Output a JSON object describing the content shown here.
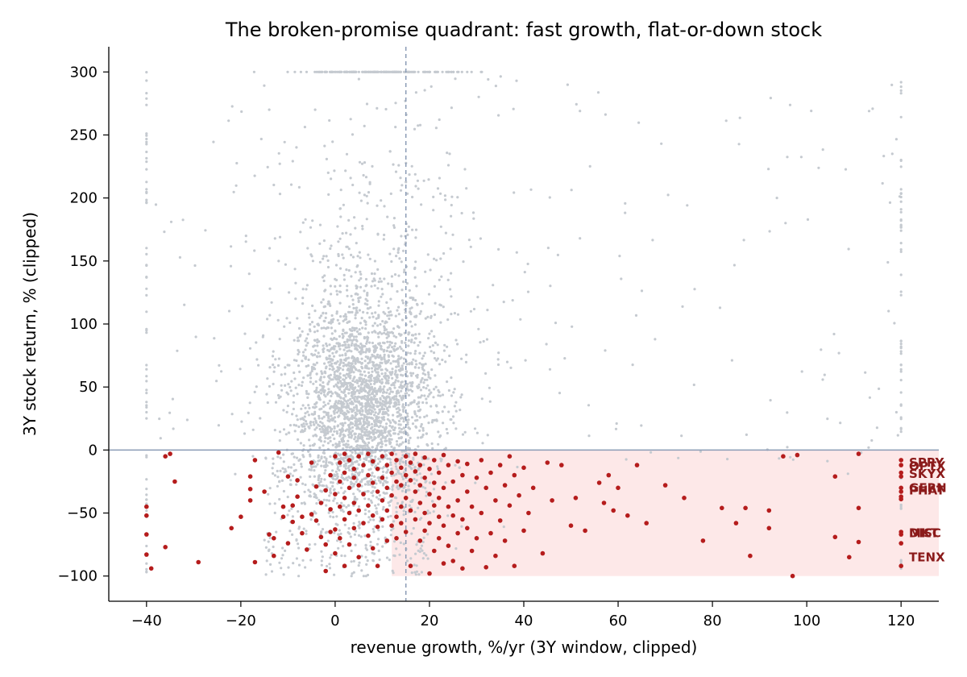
{
  "chart_data": {
    "type": "scatter",
    "title": "The broken-promise quadrant: fast growth, flat-or-down stock",
    "xlabel": "revenue growth, %/yr (3Y window, clipped)",
    "ylabel": "3Y stock return, % (clipped)",
    "xlim": [
      -48,
      128
    ],
    "ylim": [
      -120,
      320
    ],
    "x_ticks": [
      -40,
      -20,
      0,
      20,
      40,
      60,
      80,
      100,
      120
    ],
    "y_ticks": [
      -100,
      -50,
      0,
      50,
      100,
      150,
      200,
      250,
      300
    ],
    "grid": false,
    "legend": "none",
    "reference_lines": {
      "vertical_x": 15,
      "horizontal_y": 0
    },
    "shaded_region": {
      "x": [
        12,
        128
      ],
      "y": [
        -100,
        0
      ]
    },
    "colors": {
      "background_points": "#c5cad0",
      "highlight_points": "#b51c1c",
      "shaded_region": "#fde8e8",
      "reference_line": "#8a9bb5",
      "callout_text": "#8b1a1a"
    },
    "series": [
      {
        "points": [
          [
            -40,
            -45
          ],
          [
            -40,
            -52
          ],
          [
            -40,
            -67
          ],
          [
            -40,
            -83
          ],
          [
            -39,
            -94
          ],
          [
            -36,
            -77
          ],
          [
            -36,
            -5
          ],
          [
            -35,
            -3
          ],
          [
            -34,
            -25
          ],
          [
            -29,
            -89
          ],
          [
            -22,
            -62
          ],
          [
            -20,
            -53
          ],
          [
            -18,
            -40
          ],
          [
            -18,
            -31
          ],
          [
            -18,
            -21
          ],
          [
            -17,
            -89
          ],
          [
            -17,
            -8
          ],
          [
            -15,
            -33
          ],
          [
            -14,
            -67
          ],
          [
            -13,
            -70
          ],
          [
            -13,
            -84
          ],
          [
            -12,
            -2
          ],
          [
            -11,
            -53
          ],
          [
            -11,
            -45
          ],
          [
            -10,
            -74
          ],
          [
            -10,
            -21
          ],
          [
            -9,
            -44
          ],
          [
            -9,
            -57
          ],
          [
            -8,
            -24
          ],
          [
            -8,
            -37
          ],
          [
            -7,
            -66
          ],
          [
            -7,
            -53
          ],
          [
            -6,
            -79
          ],
          [
            -5,
            -51
          ],
          [
            -5,
            -10
          ],
          [
            -4,
            -29
          ],
          [
            -4,
            -56
          ],
          [
            -3,
            -42
          ],
          [
            -3,
            -69
          ],
          [
            -2,
            -75
          ],
          [
            -2,
            -96
          ],
          [
            -2,
            -32
          ],
          [
            -1,
            -20
          ],
          [
            -1,
            -47
          ],
          [
            -1,
            -65
          ],
          [
            0,
            -5
          ],
          [
            0,
            -35
          ],
          [
            0,
            -63
          ],
          [
            0,
            -82
          ],
          [
            1,
            -10
          ],
          [
            1,
            -25
          ],
          [
            1,
            -45
          ],
          [
            1,
            -70
          ],
          [
            2,
            -3
          ],
          [
            2,
            -18
          ],
          [
            2,
            -38
          ],
          [
            2,
            -55
          ],
          [
            2,
            -92
          ],
          [
            3,
            -8
          ],
          [
            3,
            -30
          ],
          [
            3,
            -50
          ],
          [
            3,
            -75
          ],
          [
            4,
            -15
          ],
          [
            4,
            -22
          ],
          [
            4,
            -42
          ],
          [
            4,
            -62
          ],
          [
            5,
            -5
          ],
          [
            5,
            -28
          ],
          [
            5,
            -48
          ],
          [
            5,
            -85
          ],
          [
            6,
            -12
          ],
          [
            6,
            -35
          ],
          [
            6,
            -58
          ],
          [
            7,
            -3
          ],
          [
            7,
            -20
          ],
          [
            7,
            -44
          ],
          [
            7,
            -68
          ],
          [
            8,
            -9
          ],
          [
            8,
            -26
          ],
          [
            8,
            -52
          ],
          [
            8,
            -78
          ],
          [
            9,
            -15
          ],
          [
            9,
            -33
          ],
          [
            9,
            -61
          ],
          [
            9,
            -92
          ],
          [
            10,
            -5
          ],
          [
            10,
            -22
          ],
          [
            10,
            -40
          ],
          [
            10,
            -55
          ],
          [
            11,
            -12
          ],
          [
            11,
            -30
          ],
          [
            11,
            -48
          ],
          [
            11,
            -72
          ],
          [
            12,
            -3
          ],
          [
            12,
            -18
          ],
          [
            12,
            -36
          ],
          [
            12,
            -60
          ],
          [
            13,
            -8
          ],
          [
            13,
            -25
          ],
          [
            13,
            -53
          ],
          [
            13,
            -70
          ],
          [
            14,
            -14
          ],
          [
            14,
            -28
          ],
          [
            14,
            -45
          ],
          [
            14,
            -58
          ],
          [
            15,
            -5
          ],
          [
            15,
            -20
          ],
          [
            15,
            -38
          ],
          [
            15,
            -65
          ],
          [
            16,
            -10
          ],
          [
            16,
            -24
          ],
          [
            16,
            -48
          ],
          [
            16,
            -92
          ],
          [
            17,
            -3
          ],
          [
            17,
            -17
          ],
          [
            17,
            -33
          ],
          [
            17,
            -55
          ],
          [
            18,
            -12
          ],
          [
            18,
            -28
          ],
          [
            18,
            -42
          ],
          [
            18,
            -72
          ],
          [
            19,
            -6
          ],
          [
            19,
            -22
          ],
          [
            19,
            -50
          ],
          [
            19,
            -64
          ],
          [
            20,
            -15
          ],
          [
            20,
            -35
          ],
          [
            20,
            -58
          ],
          [
            20,
            -98
          ],
          [
            21,
            -8
          ],
          [
            21,
            -26
          ],
          [
            21,
            -44
          ],
          [
            21,
            -80
          ],
          [
            22,
            -18
          ],
          [
            22,
            -38
          ],
          [
            22,
            -53
          ],
          [
            22,
            -70
          ],
          [
            23,
            -4
          ],
          [
            23,
            -30
          ],
          [
            23,
            -60
          ],
          [
            23,
            -90
          ],
          [
            24,
            -12
          ],
          [
            24,
            -45
          ],
          [
            24,
            -76
          ],
          [
            25,
            -25
          ],
          [
            25,
            -52
          ],
          [
            25,
            -88
          ],
          [
            26,
            -9
          ],
          [
            26,
            -40
          ],
          [
            26,
            -66
          ],
          [
            27,
            -20
          ],
          [
            27,
            -55
          ],
          [
            27,
            -94
          ],
          [
            28,
            -11
          ],
          [
            28,
            -33
          ],
          [
            28,
            -62
          ],
          [
            29,
            -45
          ],
          [
            29,
            -80
          ],
          [
            30,
            -22
          ],
          [
            30,
            -70
          ],
          [
            31,
            -8
          ],
          [
            31,
            -50
          ],
          [
            32,
            -30
          ],
          [
            32,
            -93
          ],
          [
            33,
            -18
          ],
          [
            33,
            -66
          ],
          [
            34,
            -40
          ],
          [
            34,
            -84
          ],
          [
            35,
            -12
          ],
          [
            35,
            -56
          ],
          [
            36,
            -28
          ],
          [
            36,
            -72
          ],
          [
            37,
            -5
          ],
          [
            37,
            -44
          ],
          [
            38,
            -20
          ],
          [
            38,
            -92
          ],
          [
            39,
            -36
          ],
          [
            40,
            -14
          ],
          [
            40,
            -64
          ],
          [
            41,
            -50
          ],
          [
            42,
            -30
          ],
          [
            44,
            -82
          ],
          [
            45,
            -10
          ],
          [
            46,
            -40
          ],
          [
            48,
            -12
          ],
          [
            50,
            -60
          ],
          [
            51,
            -38
          ],
          [
            53,
            -64
          ],
          [
            56,
            -26
          ],
          [
            57,
            -42
          ],
          [
            58,
            -20
          ],
          [
            59,
            -48
          ],
          [
            60,
            -30
          ],
          [
            62,
            -52
          ],
          [
            64,
            -12
          ],
          [
            66,
            -58
          ],
          [
            70,
            -28
          ],
          [
            74,
            -38
          ],
          [
            78,
            -72
          ],
          [
            82,
            -46
          ],
          [
            85,
            -58
          ],
          [
            87,
            -46
          ],
          [
            88,
            -84
          ],
          [
            92,
            -48
          ],
          [
            92,
            -62
          ],
          [
            95,
            -5
          ],
          [
            97,
            -100
          ],
          [
            98,
            -4
          ],
          [
            106,
            -21
          ],
          [
            106,
            -69
          ],
          [
            109,
            -85
          ],
          [
            111,
            -3
          ],
          [
            111,
            -46
          ],
          [
            111,
            -73
          ],
          [
            120,
            -8
          ],
          [
            120,
            -12
          ],
          [
            120,
            -18
          ],
          [
            120,
            -21
          ],
          [
            120,
            -30
          ],
          [
            120,
            -33
          ],
          [
            120,
            -37
          ],
          [
            120,
            -39
          ],
          [
            120,
            -65
          ],
          [
            120,
            -67
          ],
          [
            120,
            -74
          ],
          [
            120,
            -92
          ]
        ]
      }
    ],
    "annotations": [
      {
        "text": "SPRY",
        "x": 121,
        "y": -10
      },
      {
        "text": "OPTX",
        "x": 121,
        "y": -13
      },
      {
        "text": "SKYX",
        "x": 121,
        "y": -19
      },
      {
        "text": "GERN",
        "x": 121,
        "y": -30
      },
      {
        "text": "PHAT",
        "x": 121,
        "y": -32
      },
      {
        "text": "DISC",
        "x": 121,
        "y": -66
      },
      {
        "text": "MKT",
        "x": 121,
        "y": -66
      },
      {
        "text": "TENX",
        "x": 121,
        "y": -85
      }
    ]
  }
}
